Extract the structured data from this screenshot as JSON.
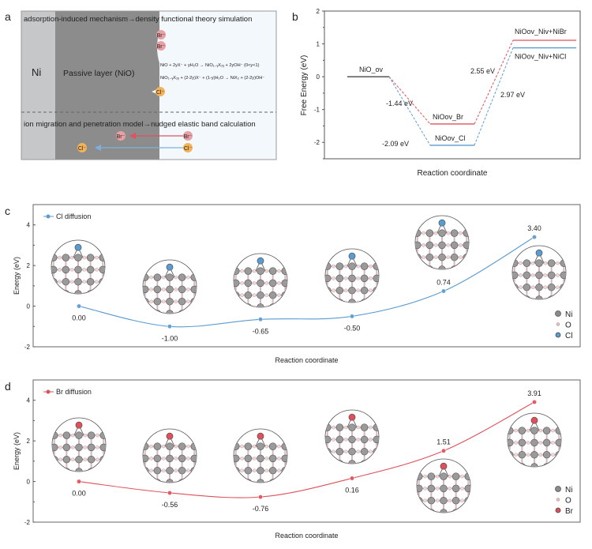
{
  "panels": {
    "a": "a",
    "b": "b",
    "c": "c",
    "d": "d"
  },
  "panel_a": {
    "top_heading": "adsorption-induced mechanism→density functional theory simulation",
    "bottom_heading": "ion migration and penetration model→nudged elastic band calculation",
    "ni_label": "Ni",
    "passive_label": "Passive layer (NiO)",
    "equation_1": "NiO + 2yX⁻ + yH₂O → NiO₁₋ᵧX₂ᵧ + 2yOH⁻ (0<y<1)",
    "equation_2": "NiO₁₋ᵧX₂ᵧ + (2-2y)X⁻ + (1-y)H₂O → NiX₂ + (2-2y)OH⁻",
    "ion_br": "Br⁻",
    "ion_cl": "Cl⁻",
    "colors": {
      "ni": "#c6c7c9",
      "passive": "#8c8c8c",
      "solution": "#f3f8fc",
      "br": "#e8a0a4",
      "cl": "#f3b35a",
      "br_arrow": "#e05060",
      "cl_arrow": "#7fb0dc"
    }
  },
  "chart_data": [
    {
      "type": "line",
      "panel": "b",
      "subtype": "energy-level diagram",
      "xlabel": "Reaction coordinate",
      "ylabel": "Free Energy (eV)",
      "ylim": [
        -2.5,
        2
      ],
      "yticks": [
        2,
        1,
        0,
        -1,
        -2
      ],
      "levels": [
        {
          "label": "NiO_ov",
          "value": 0,
          "step": 0,
          "color": "#333333"
        },
        {
          "label": "NiOov_Br",
          "value": -1.44,
          "step": 1,
          "color": "#e0505a"
        },
        {
          "label": "NiOov_Cl",
          "value": -2.09,
          "step": 1,
          "color": "#5b9bd0"
        },
        {
          "label": "NiOov_Niv+NiBr",
          "value": 1.11,
          "step": 2,
          "color": "#e0505a"
        },
        {
          "label": "NiOov_Niv+NiCl",
          "value": 0.88,
          "step": 2,
          "color": "#5b9bd0"
        }
      ],
      "annotations": [
        "-1.44 eV",
        "-2.09 eV",
        "2.55 eV",
        "2.97 eV"
      ]
    },
    {
      "type": "line",
      "panel": "c",
      "xlabel": "Reaction coordinate",
      "ylabel": "Energy (eV)",
      "ylim": [
        -2,
        5
      ],
      "yticks": [
        4,
        2,
        0,
        -2
      ],
      "series": [
        {
          "name": "Cl diffusion",
          "color": "#5b9bd0",
          "values": [
            0.0,
            -1.0,
            -0.65,
            -0.5,
            0.74,
            3.4
          ]
        }
      ],
      "data_labels": [
        "0.00",
        "-1.00",
        "-0.65",
        "-0.50",
        "0.74",
        "3.40"
      ],
      "legend": [
        "Ni",
        "O",
        "Cl"
      ],
      "legend_colors": [
        "#8a8a8a",
        "#e8c8cc",
        "#5b9bd0"
      ]
    },
    {
      "type": "line",
      "panel": "d",
      "xlabel": "Reaction coordinate",
      "ylabel": "Energy (eV)",
      "ylim": [
        -2,
        5
      ],
      "yticks": [
        4,
        2,
        0,
        -2
      ],
      "series": [
        {
          "name": "Br diffusion",
          "color": "#e0505a",
          "values": [
            0.0,
            -0.56,
            -0.76,
            0.16,
            1.51,
            3.91
          ]
        }
      ],
      "data_labels": [
        "0.00",
        "-0.56",
        "-0.76",
        "0.16",
        "1.51",
        "3.91"
      ],
      "legend": [
        "Ni",
        "O",
        "Br"
      ],
      "legend_colors": [
        "#8a8a8a",
        "#e8c8cc",
        "#e0505a"
      ]
    }
  ]
}
